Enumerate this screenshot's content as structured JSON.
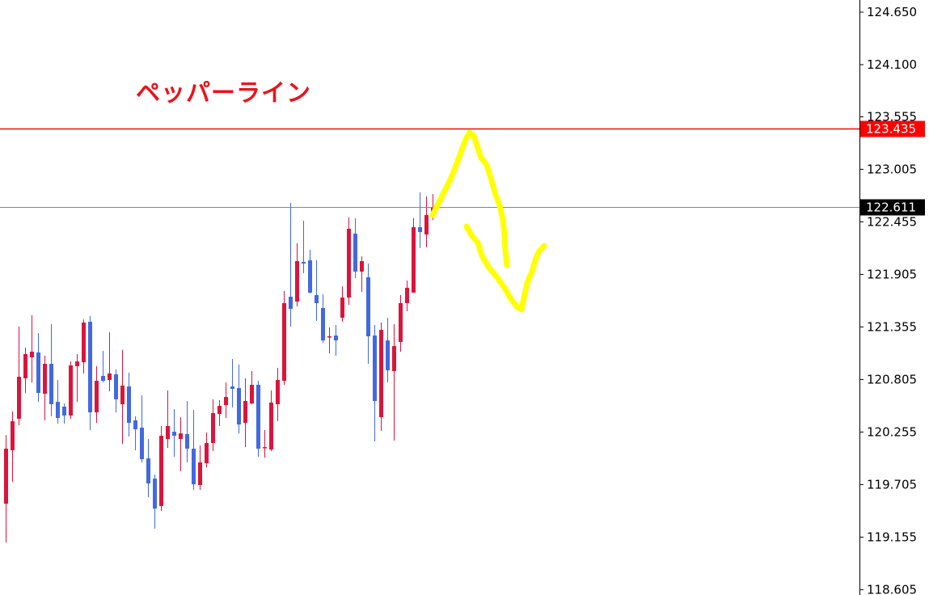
{
  "annotation": {
    "text": "ペッパーライン",
    "color": "#e8141c"
  },
  "chart_data": {
    "type": "candlestick",
    "title": "",
    "xlabel": "",
    "ylabel": "",
    "ylim": [
      118.605,
      124.65
    ],
    "grid": false,
    "y_ticks": [
      "124.650",
      "124.100",
      "123.555",
      "123.005",
      "122.455",
      "121.905",
      "121.355",
      "120.805",
      "120.255",
      "119.705",
      "119.155",
      "118.605"
    ],
    "colors": {
      "bull": "#dc143c",
      "bear": "#4169e1",
      "drawing": "#ffff00"
    },
    "horizontal_lines": [
      {
        "price": 123.435,
        "label": "123.435",
        "color": "#ff0000",
        "label_bg": "#ff0000"
      },
      {
        "price": 122.611,
        "label": "122.611",
        "color": "#778899",
        "label_bg": "#000000"
      }
    ],
    "candles_ohlc": [
      [
        119.505,
        120.224,
        119.099,
        120.081
      ],
      [
        120.064,
        120.47,
        119.734,
        120.368
      ],
      [
        120.394,
        121.358,
        120.326,
        120.834
      ],
      [
        120.817,
        121.138,
        120.664,
        121.071
      ],
      [
        121.037,
        121.477,
        120.774,
        121.096
      ],
      [
        121.088,
        121.291,
        120.571,
        120.664
      ],
      [
        120.656,
        121.054,
        120.377,
        120.969
      ],
      [
        120.969,
        121.384,
        120.419,
        120.546
      ],
      [
        120.571,
        120.8,
        120.343,
        120.402
      ],
      [
        120.521,
        120.554,
        120.343,
        120.428
      ],
      [
        120.428,
        120.994,
        120.394,
        120.952
      ],
      [
        120.944,
        121.071,
        120.571,
        120.994
      ],
      [
        120.986,
        121.434,
        120.868,
        121.401
      ],
      [
        121.409,
        121.468,
        120.275,
        120.461
      ],
      [
        120.461,
        120.944,
        120.351,
        120.791
      ],
      [
        120.842,
        121.104,
        120.774,
        120.791
      ],
      [
        120.8,
        121.299,
        120.681,
        120.868
      ],
      [
        120.859,
        120.91,
        120.461,
        120.597
      ],
      [
        120.546,
        121.113,
        120.131,
        120.741
      ],
      [
        120.732,
        120.876,
        120.208,
        120.351
      ],
      [
        120.377,
        120.419,
        120.064,
        120.284
      ],
      [
        120.301,
        120.639,
        119.937,
        119.971
      ],
      [
        119.979,
        120.182,
        119.573,
        119.717
      ],
      [
        119.767,
        119.81,
        119.243,
        119.454
      ],
      [
        119.48,
        120.318,
        119.429,
        120.216
      ],
      [
        120.182,
        120.69,
        120.089,
        120.318
      ],
      [
        120.258,
        120.495,
        119.996,
        120.216
      ],
      [
        120.182,
        120.411,
        119.844,
        120.241
      ],
      [
        120.233,
        120.58,
        119.937,
        120.081
      ],
      [
        120.081,
        120.487,
        119.649,
        119.708
      ],
      [
        119.7,
        120.114,
        119.649,
        119.937
      ],
      [
        119.928,
        120.25,
        119.886,
        120.14
      ],
      [
        120.14,
        120.597,
        120.055,
        120.453
      ],
      [
        120.444,
        120.588,
        120.318,
        120.529
      ],
      [
        120.537,
        120.774,
        120.402,
        120.622
      ],
      [
        120.732,
        121.02,
        120.512,
        120.707
      ],
      [
        120.715,
        120.961,
        120.241,
        120.334
      ],
      [
        120.351,
        120.817,
        120.097,
        120.58
      ],
      [
        120.554,
        120.893,
        120.546,
        120.749
      ],
      [
        120.749,
        120.791,
        119.996,
        120.081
      ],
      [
        120.094,
        120.275,
        119.987,
        120.097
      ],
      [
        120.072,
        120.69,
        120.055,
        120.563
      ],
      [
        120.546,
        120.927,
        120.368,
        120.8
      ],
      [
        120.791,
        121.731,
        120.749,
        121.604
      ],
      [
        121.671,
        122.653,
        121.358,
        121.544
      ],
      [
        121.621,
        122.23,
        121.57,
        122.044
      ],
      [
        122.035,
        122.467,
        121.917,
        122.018
      ],
      [
        122.052,
        122.162,
        121.705,
        121.714
      ],
      [
        121.688,
        122.052,
        121.418,
        121.604
      ],
      [
        121.553,
        121.697,
        121.189,
        121.214
      ],
      [
        121.252,
        121.35,
        121.079,
        121.257
      ],
      [
        121.265,
        121.375,
        121.054,
        121.214
      ],
      [
        121.451,
        121.781,
        121.409,
        121.663
      ],
      [
        121.663,
        122.501,
        121.587,
        122.382
      ],
      [
        122.331,
        122.492,
        121.866,
        121.934
      ],
      [
        121.934,
        122.095,
        121.722,
        122.044
      ],
      [
        121.875,
        122.018,
        120.969,
        121.257
      ],
      [
        121.265,
        121.375,
        120.157,
        120.58
      ],
      [
        120.411,
        121.401,
        120.267,
        121.324
      ],
      [
        121.214,
        121.451,
        120.774,
        120.901
      ],
      [
        120.893,
        121.384,
        120.165,
        121.155
      ],
      [
        121.198,
        121.688,
        121.096,
        121.604
      ],
      [
        121.604,
        121.841,
        121.519,
        121.765
      ],
      [
        121.714,
        122.492,
        121.714,
        122.399
      ],
      [
        122.399,
        122.763,
        122.179,
        122.348
      ],
      [
        122.323,
        122.721,
        122.188,
        122.526
      ],
      [
        122.509,
        122.746,
        122.475,
        122.611
      ]
    ]
  }
}
